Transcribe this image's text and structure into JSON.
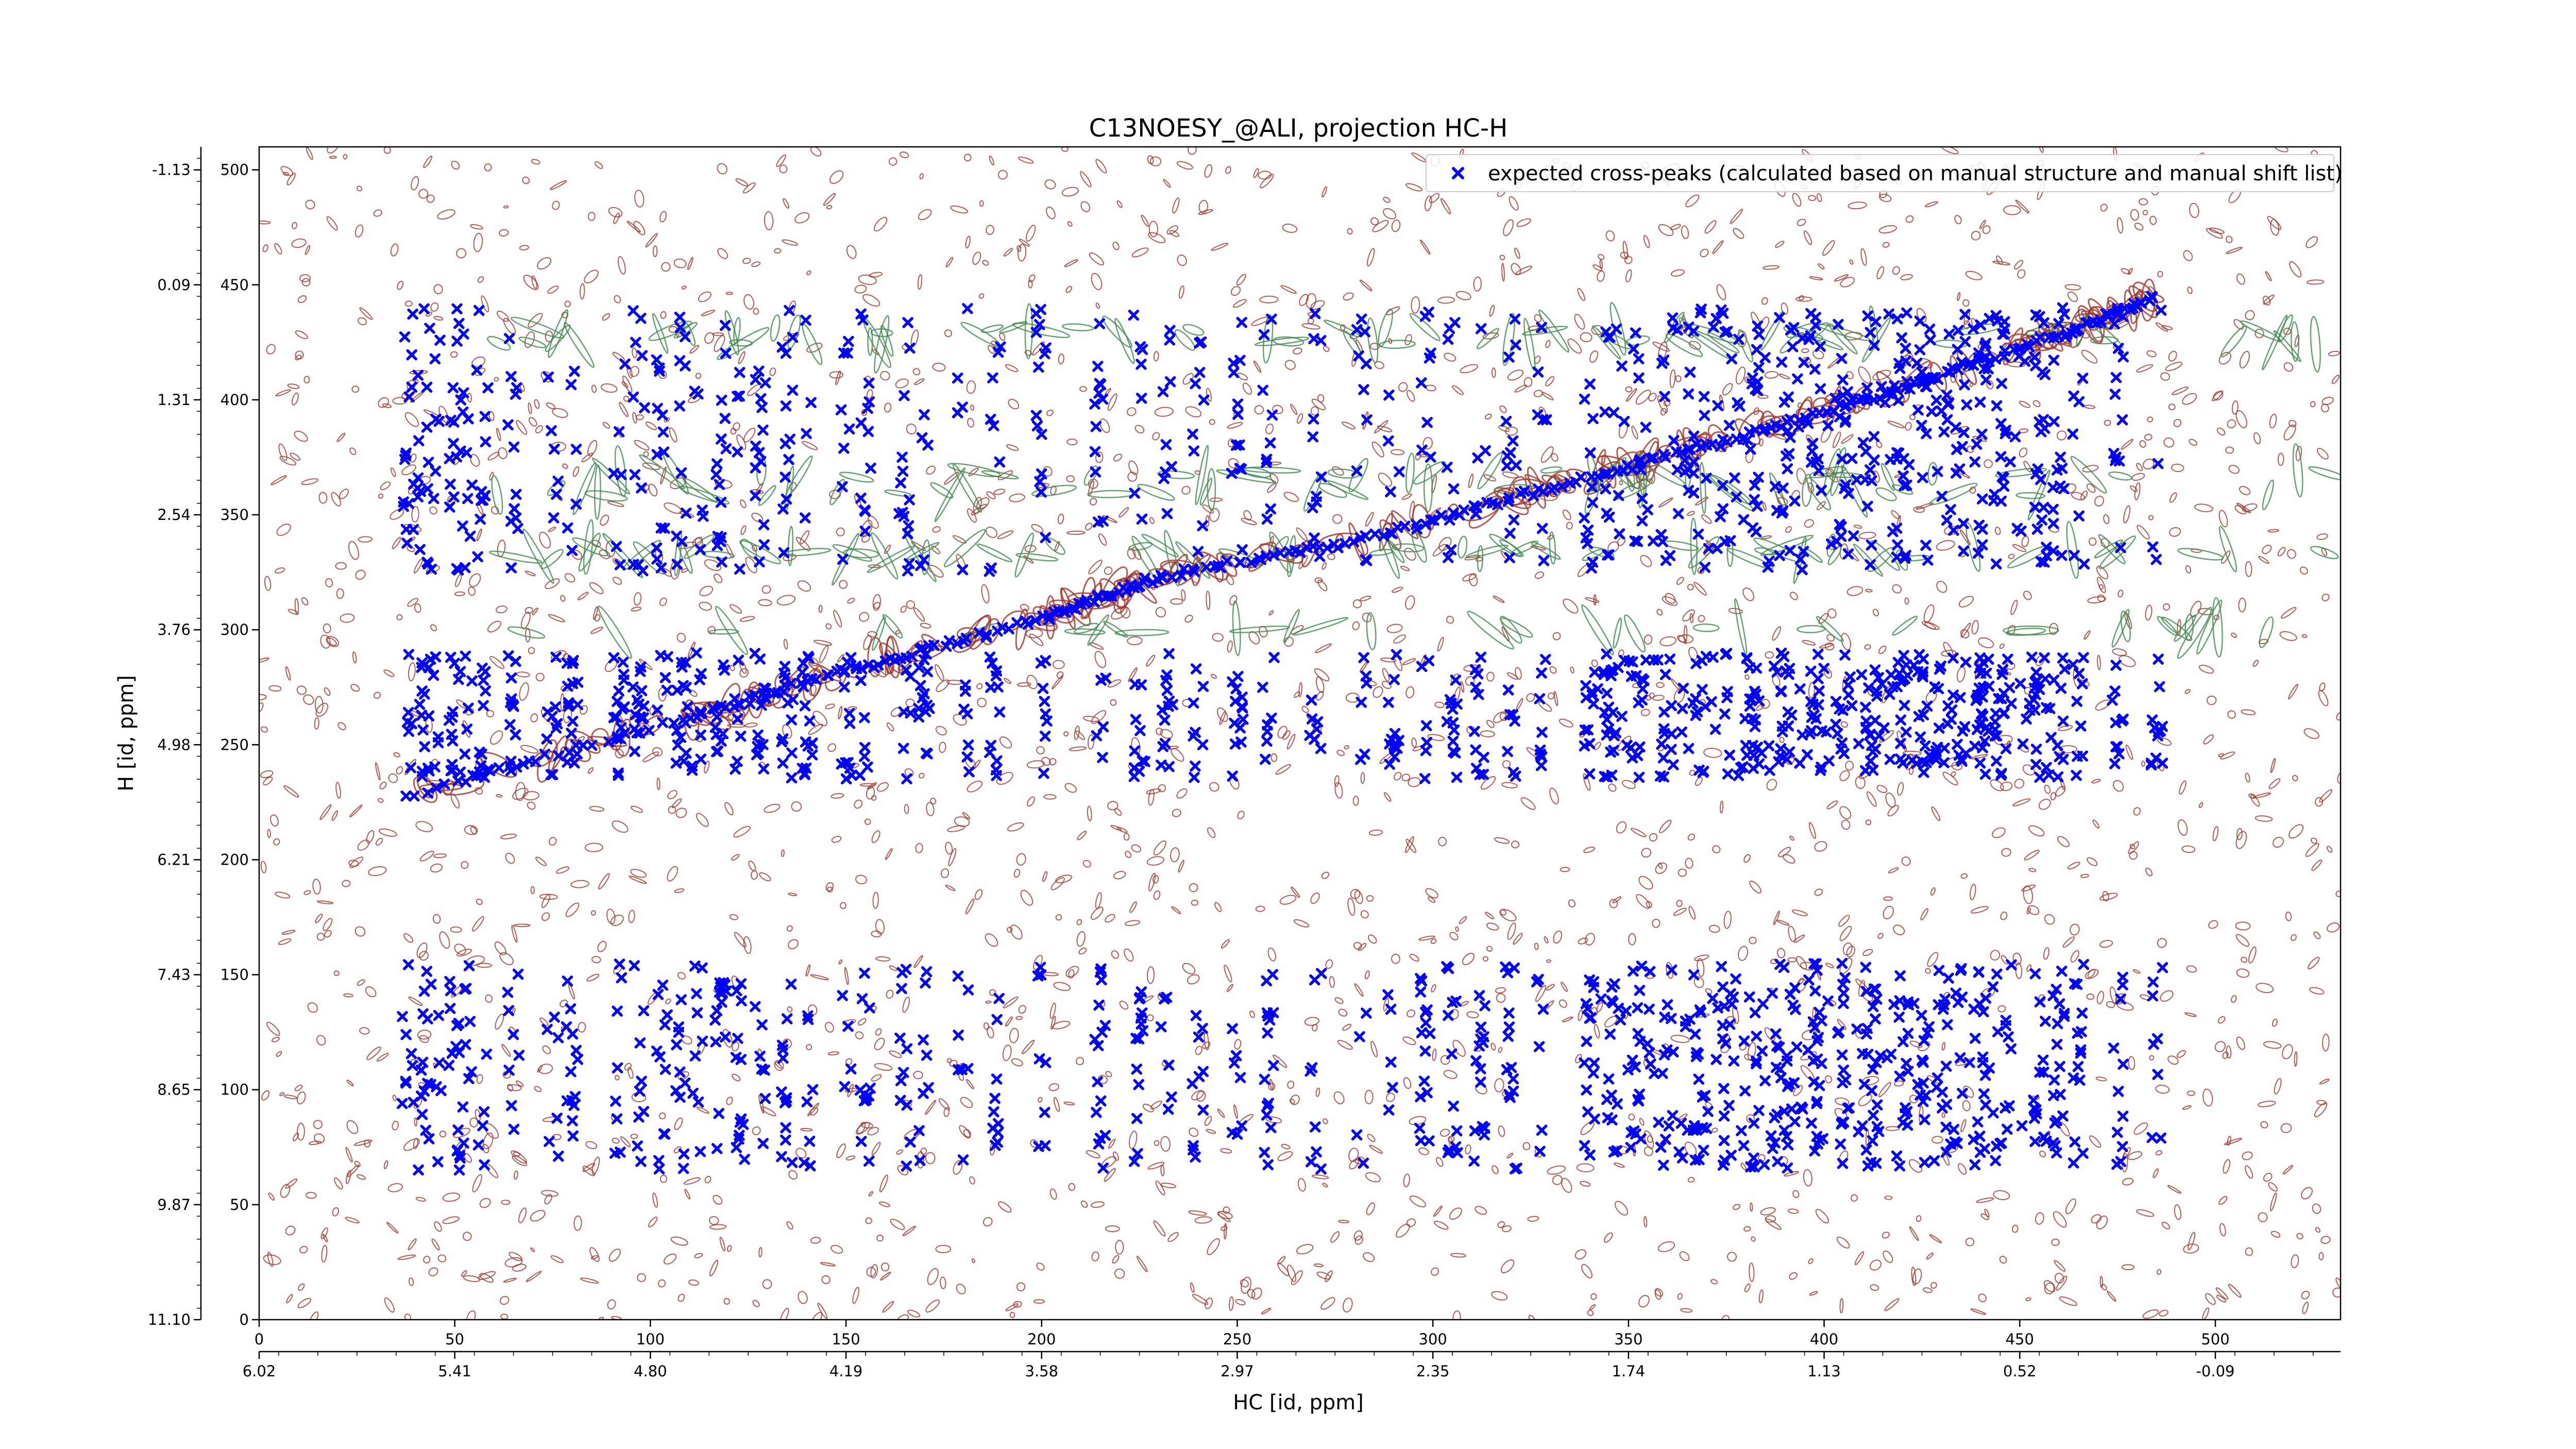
{
  "chart_data": {
    "type": "scatter",
    "title": "C13NOESY_@ALI, projection HC-H",
    "xlabel": "HC [id, ppm]",
    "ylabel": "H [id, ppm]",
    "x_index_ticks": [
      "0",
      "50",
      "100",
      "150",
      "200",
      "250",
      "300",
      "350",
      "400",
      "450",
      "500"
    ],
    "x_ppm_ticks": [
      "6.02",
      "5.41",
      "4.80",
      "4.19",
      "3.58",
      "2.97",
      "2.35",
      "1.74",
      "1.13",
      "0.52",
      "-0.09"
    ],
    "y_index_ticks": [
      "0",
      "50",
      "100",
      "150",
      "200",
      "250",
      "300",
      "350",
      "400",
      "450",
      "500"
    ],
    "y_ppm_ticks": [
      "11.10",
      "9.87",
      "8.65",
      "7.43",
      "6.21",
      "4.98",
      "3.76",
      "2.54",
      "1.31",
      "0.09",
      "-1.13"
    ],
    "xlim": [
      0,
      532
    ],
    "ylim": [
      0,
      510
    ],
    "grid": false,
    "legend": {
      "placement": "top-right",
      "entries": [
        "expected cross-peaks (calculated based on manual structure and manual shift list)"
      ]
    },
    "series": [
      {
        "name": "expected cross-peaks (calculated based on manual structure and manual shift list)",
        "color": "#0000ff",
        "marker": "x",
        "diagonal": {
          "x": [
            38,
            110,
            150,
            200,
            230,
            280,
            330,
            380,
            420,
            460,
            485
          ],
          "y": [
            228,
            262,
            282,
            305,
            323,
            338,
            362,
            385,
            405,
            428,
            445
          ]
        },
        "columns_x": [
          38,
          42,
          45,
          50,
          53,
          57,
          65,
          75,
          80,
          92,
          97,
          103,
          108,
          112,
          118,
          123,
          128,
          135,
          140,
          150,
          155,
          165,
          170,
          180,
          188,
          200,
          215,
          225,
          232,
          240,
          250,
          258,
          270,
          282,
          290,
          298,
          305,
          312,
          320,
          328,
          340,
          345,
          352,
          360,
          368,
          375,
          382,
          390,
          398,
          405,
          412,
          420,
          425,
          430,
          435,
          440,
          445,
          455,
          460,
          465,
          475,
          485
        ],
        "row_bands": [
          {
            "y_min": 235,
            "y_max": 290
          },
          {
            "y_min": 325,
            "y_max": 440
          },
          {
            "y_min": 65,
            "y_max": 155
          }
        ]
      }
    ],
    "contours": [
      {
        "name": "positive",
        "color": "#a0342a"
      },
      {
        "name": "negative",
        "color": "#3e8a4e"
      }
    ]
  }
}
